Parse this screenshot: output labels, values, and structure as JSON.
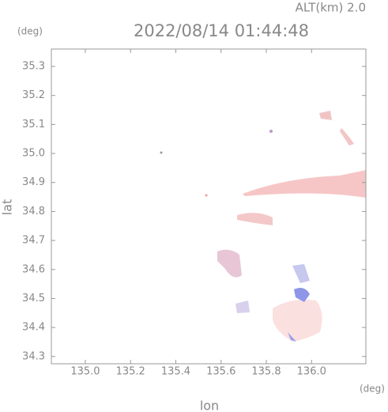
{
  "chart_data": {
    "type": "map",
    "title": "2022/08/14 01:44:48",
    "subtitle": "ALT(km) 2.0",
    "x_label": "lon",
    "y_label": "lat",
    "x_unit": "(deg)",
    "y_unit": "(deg)",
    "xlim": [
      134.85,
      136.24
    ],
    "ylim": [
      34.275,
      35.36
    ],
    "xticks": [
      {
        "value": 135,
        "label": "135.0"
      },
      135.2,
      135.4,
      135.6,
      135.8,
      {
        "value": 136,
        "label": "136.0"
      }
    ],
    "yticks": [
      34.3,
      34.4,
      34.5,
      34.6,
      34.7,
      34.8,
      34.9,
      {
        "value": 35,
        "label": "35.0"
      },
      35.1,
      35.2,
      35.3
    ],
    "grid": false
  }
}
